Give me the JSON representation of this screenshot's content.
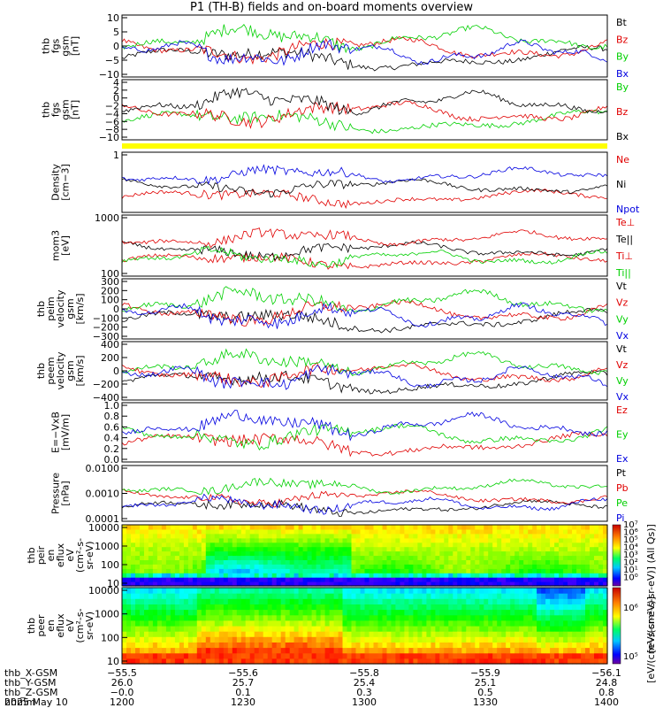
{
  "title": "P1 (TH-B) fields and on-board moments overview",
  "colors": {
    "black": "#000000",
    "red": "#e00000",
    "green": "#00d000",
    "blue": "#0000e0",
    "yellow": "#ffff00"
  },
  "chart_data": [
    {
      "type": "line",
      "ylabel": [
        "thb",
        "fgs",
        "gsm",
        "[nT]"
      ],
      "ylim": [
        -10,
        10
      ],
      "yticks": [
        "10",
        "5",
        "0",
        "−5",
        "−10"
      ],
      "legend": [
        {
          "name": "Bt",
          "color": "black"
        },
        {
          "name": "Bz",
          "color": "red"
        },
        {
          "name": "By",
          "color": "green"
        },
        {
          "name": "Bx",
          "color": "blue"
        }
      ]
    },
    {
      "type": "line",
      "ylabel": [
        "thb",
        "fgs",
        "gsm",
        "[nT]"
      ],
      "ylim": [
        -10,
        4
      ],
      "yticks": [
        "4",
        "2",
        "0",
        "−2",
        "−4",
        "−6",
        "−8",
        "−10"
      ],
      "legend": [
        {
          "name": "By",
          "color": "green"
        },
        {
          "name": "Bz",
          "color": "red"
        },
        {
          "name": "Bx",
          "color": "black"
        }
      ]
    },
    {
      "type": "line",
      "ylabel": [
        "Density",
        "[cm−3]"
      ],
      "yscale": "log",
      "ylim": [
        0.1,
        1.5
      ],
      "yticks": [
        "1"
      ],
      "legend": [
        {
          "name": "Ne",
          "color": "red"
        },
        {
          "name": "Ni",
          "color": "black"
        },
        {
          "name": "Npot",
          "color": "blue"
        }
      ]
    },
    {
      "type": "line",
      "ylabel": [
        "mom3",
        "[eV]"
      ],
      "yscale": "log",
      "ylim": [
        60,
        5000
      ],
      "yticks": [
        "1000",
        "100"
      ],
      "legend": [
        {
          "name": "Te⊥",
          "color": "red"
        },
        {
          "name": "Te||",
          "color": "black"
        },
        {
          "name": "Ti⊥",
          "color": "red"
        },
        {
          "name": "Ti||",
          "color": "green"
        }
      ]
    },
    {
      "type": "line",
      "ylabel": [
        "thb",
        "peim",
        "velocity",
        "gsm",
        "[km/s]"
      ],
      "ylim": [
        -330,
        330
      ],
      "yticks": [
        "300",
        "200",
        "100",
        "0",
        "−100",
        "−200",
        "−300"
      ],
      "legend": [
        {
          "name": "Vt",
          "color": "black"
        },
        {
          "name": "Vz",
          "color": "red"
        },
        {
          "name": "Vy",
          "color": "green"
        },
        {
          "name": "Vx",
          "color": "blue"
        }
      ]
    },
    {
      "type": "line",
      "ylabel": [
        "thb",
        "peem",
        "velocity",
        "gsm",
        "[km/s]"
      ],
      "ylim": [
        -500,
        400
      ],
      "yticks": [
        "400",
        "200",
        "0",
        "−200",
        "−400"
      ],
      "legend": [
        {
          "name": "Vt",
          "color": "black"
        },
        {
          "name": "Vz",
          "color": "red"
        },
        {
          "name": "Vy",
          "color": "green"
        },
        {
          "name": "Vx",
          "color": "blue"
        }
      ]
    },
    {
      "type": "line",
      "ylabel": [
        "E=−VxB",
        "[mV/m]"
      ],
      "ylim": [
        -0.05,
        1.0
      ],
      "yticks": [
        "1.0",
        "0.8",
        "0.6",
        "0.4",
        "0.2",
        "0.0"
      ],
      "legend": [
        {
          "name": "Ez",
          "color": "red"
        },
        {
          "name": "Ey",
          "color": "green"
        },
        {
          "name": "Ex",
          "color": "blue"
        }
      ]
    },
    {
      "type": "line",
      "ylabel": [
        "Pressure",
        "[nPa]"
      ],
      "yscale": "log",
      "ylim": [
        0.0001,
        0.1
      ],
      "yticks": [
        "0.0100",
        "0.0010",
        "0.0001"
      ],
      "legend": [
        {
          "name": "Pt",
          "color": "black"
        },
        {
          "name": "Pb",
          "color": "red"
        },
        {
          "name": "Pe",
          "color": "green"
        },
        {
          "name": "Pi",
          "color": "blue"
        }
      ]
    },
    {
      "type": "heatmap",
      "ylabel": [
        "thb",
        "peir",
        "en",
        "eflux",
        "eV",
        "(cm²-s-",
        "sr-eV)"
      ],
      "yscale": "log",
      "ylim": [
        5,
        20000
      ],
      "yticks": [
        "10000",
        "1000",
        "100",
        "10"
      ]
    },
    {
      "type": "heatmap",
      "ylabel": [
        "thb",
        "peer",
        "en",
        "eflux",
        "eV",
        "(cm²-s-",
        "sr-eV)"
      ],
      "yscale": "log",
      "ylim": [
        5,
        20000
      ],
      "yticks": [
        "10000",
        "1000",
        "100",
        "10"
      ]
    }
  ],
  "colorbar": {
    "upper_labels": [
      "10⁷",
      "10⁶",
      "10⁵",
      "10⁴",
      "10³",
      "10²",
      "10¹",
      "10⁰"
    ],
    "lower_labels": [
      "10⁶",
      "10⁵"
    ],
    "label": "[eV/(cm²-s-sr-eV)] (All Qs)]",
    "label2": "[eV/(cm²-s-sr-eV)]"
  },
  "x_axis": {
    "rows": [
      {
        "label": "thb_X-GSM",
        "values": [
          "−55.5",
          "−55.6",
          "−55.8",
          "−55.9",
          "−56.1"
        ]
      },
      {
        "label": "thb_Y-GSM",
        "values": [
          "26.0",
          "25.7",
          "25.4",
          "25.1",
          "24.8"
        ]
      },
      {
        "label": "thb_Z-GSM",
        "values": [
          "−0.0",
          "0.1",
          "0.3",
          "0.5",
          "0.8"
        ]
      },
      {
        "label": "hhmm",
        "values": [
          "1200",
          "1230",
          "1300",
          "1330",
          "1400"
        ]
      }
    ],
    "date": "2025 May 10"
  }
}
